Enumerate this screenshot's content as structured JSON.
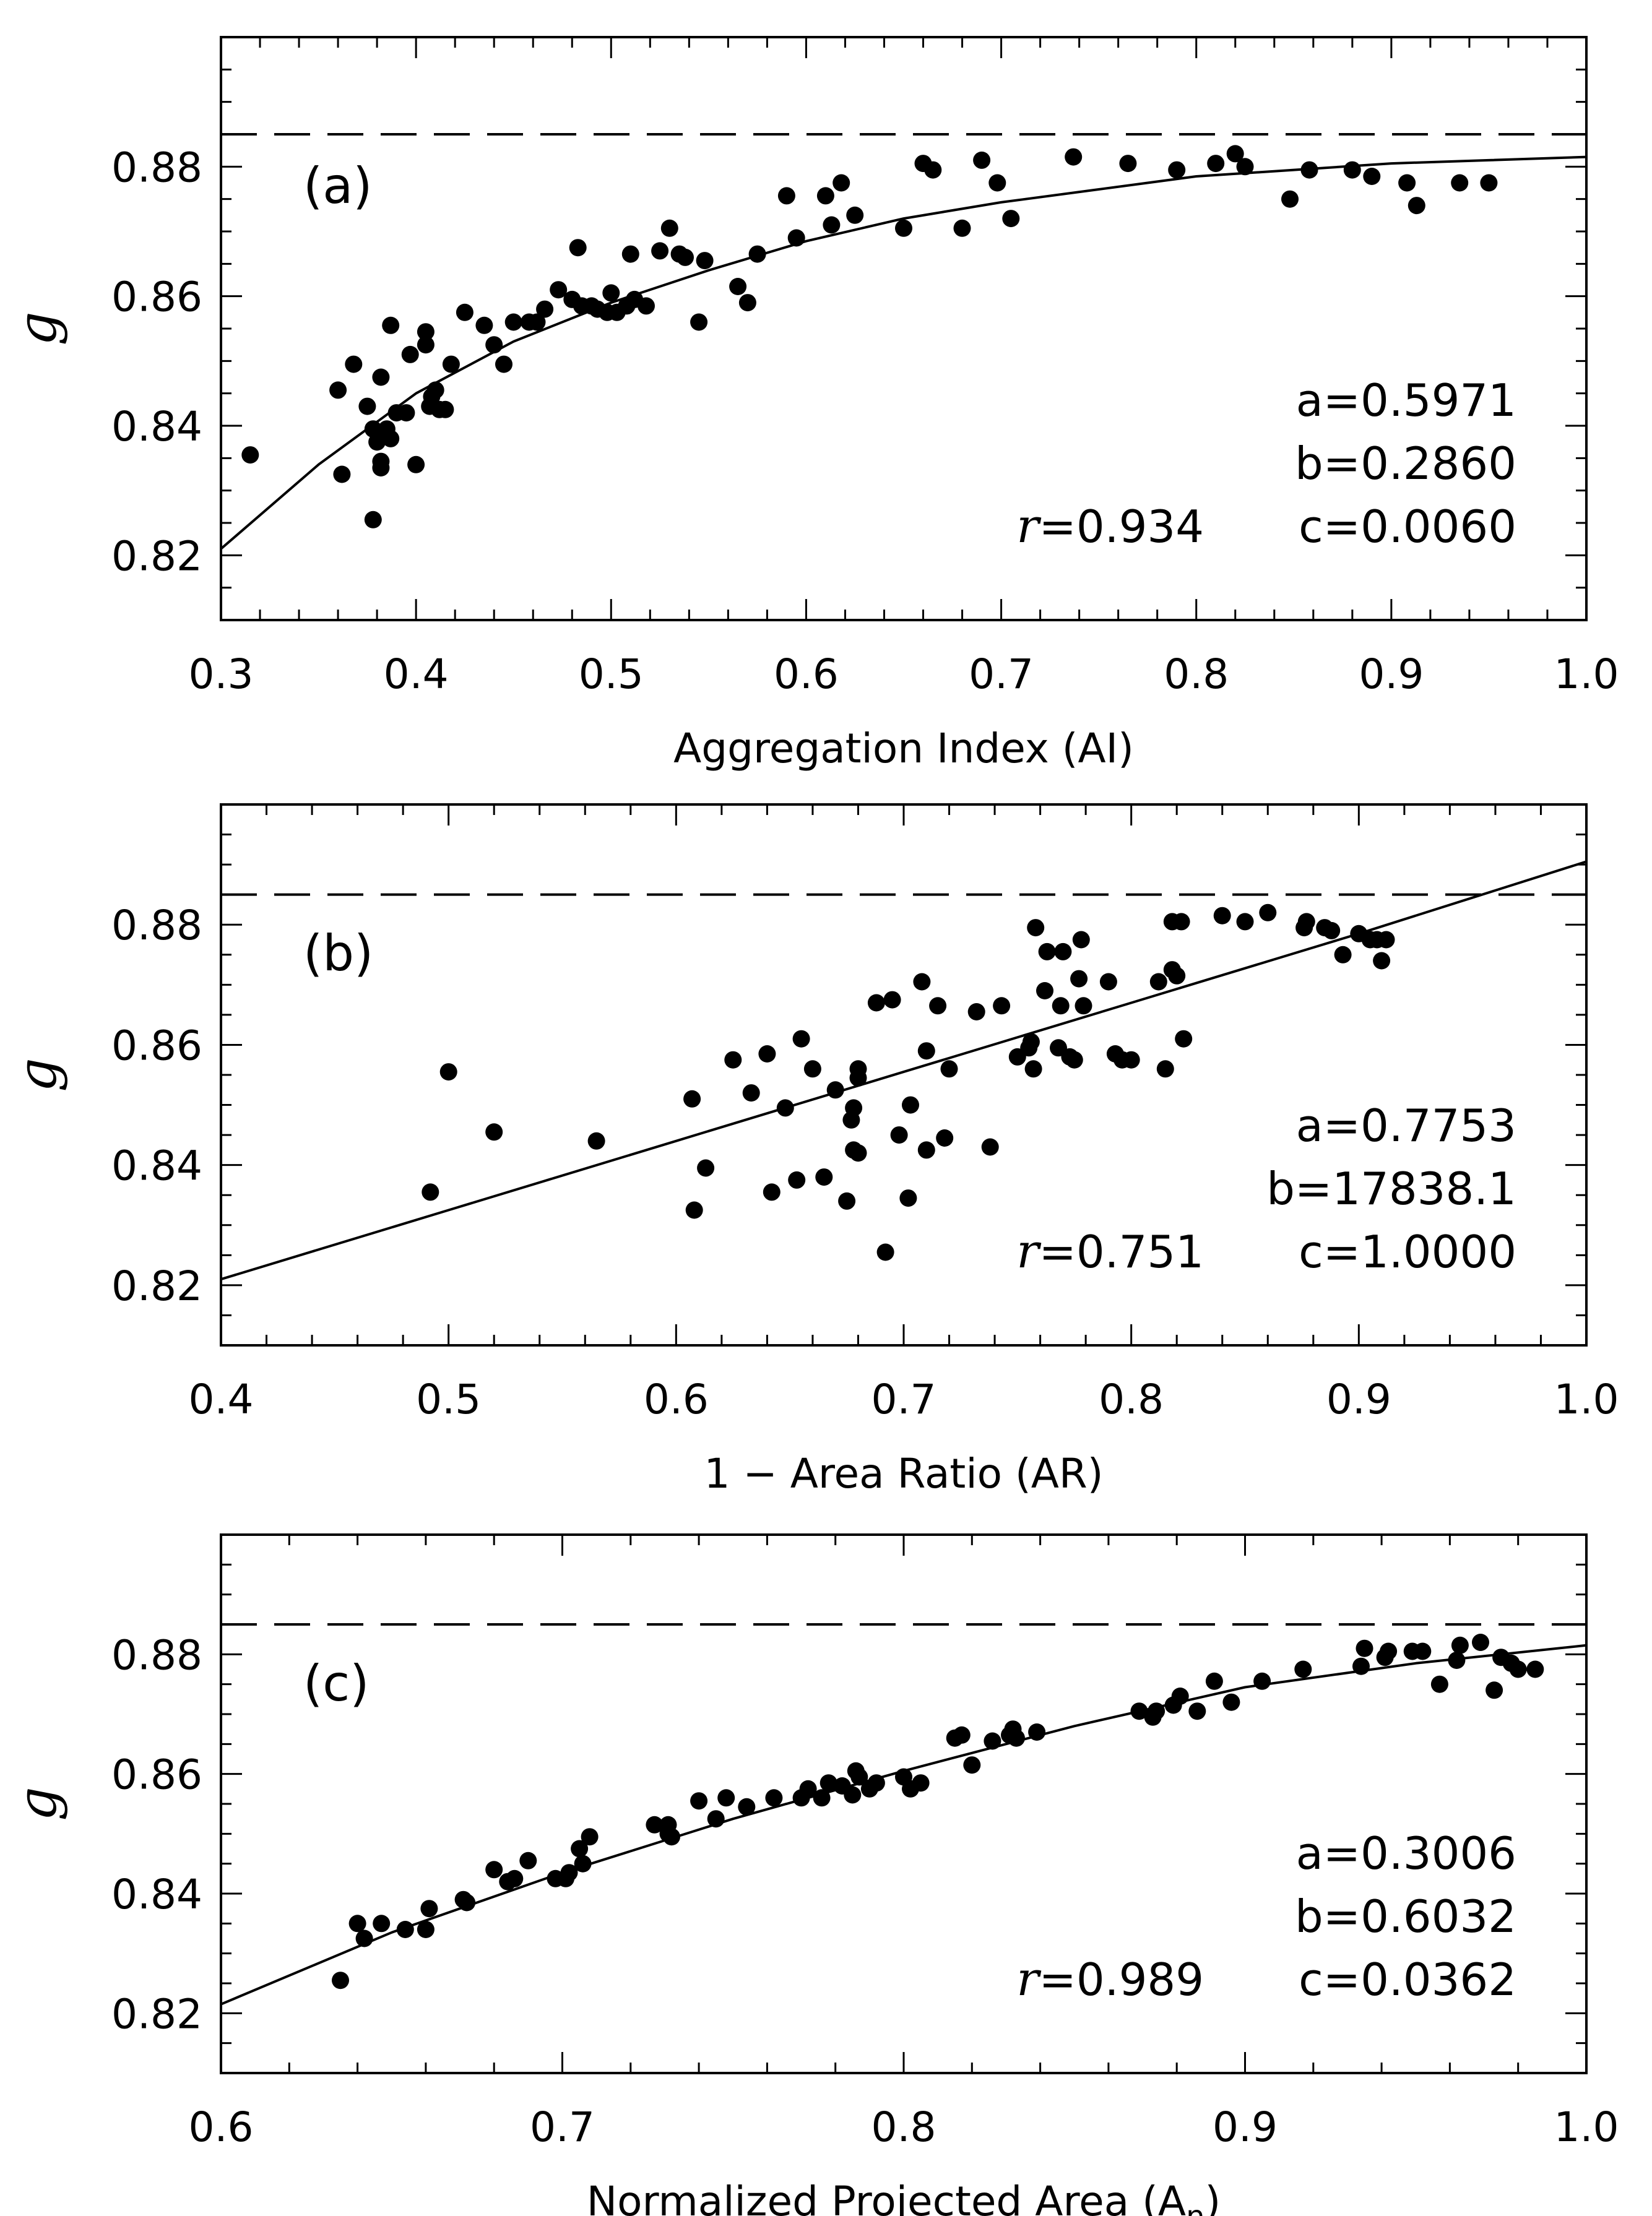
{
  "chart_data": [
    {
      "type": "scatter",
      "panel_label": "(a)",
      "xlabel": "Aggregation Index (AI)",
      "ylabel": "g",
      "xlim": [
        0.3,
        1.0
      ],
      "ylim": [
        0.81,
        0.9
      ],
      "xticks": [
        "0.3",
        "0.4",
        "0.5",
        "0.6",
        "0.7",
        "0.8",
        "0.9",
        "1.0"
      ],
      "yticks": [
        "0.82",
        "0.84",
        "0.86",
        "0.88"
      ],
      "reference_line": 0.885,
      "annotations": {
        "a": "a=0.5971",
        "b": "b=0.2860",
        "c": "c=0.0060",
        "r_symbol": "r",
        "r_value": "=0.934"
      },
      "fit_curve": {
        "x": [
          0.3,
          0.35,
          0.4,
          0.45,
          0.5,
          0.55,
          0.6,
          0.65,
          0.7,
          0.75,
          0.8,
          0.85,
          0.9,
          0.95,
          1.0
        ],
        "y": [
          0.821,
          0.834,
          0.845,
          0.853,
          0.859,
          0.864,
          0.8685,
          0.872,
          0.8745,
          0.8765,
          0.8785,
          0.8795,
          0.8805,
          0.881,
          0.8815
        ]
      },
      "points": [
        [
          0.315,
          0.8355
        ],
        [
          0.36,
          0.8455
        ],
        [
          0.362,
          0.8325
        ],
        [
          0.368,
          0.8495
        ],
        [
          0.375,
          0.843
        ],
        [
          0.378,
          0.8395
        ],
        [
          0.378,
          0.8255
        ],
        [
          0.38,
          0.8375
        ],
        [
          0.382,
          0.8335
        ],
        [
          0.382,
          0.8345
        ],
        [
          0.382,
          0.8475
        ],
        [
          0.385,
          0.8395
        ],
        [
          0.387,
          0.838
        ],
        [
          0.387,
          0.8555
        ],
        [
          0.39,
          0.842
        ],
        [
          0.395,
          0.842
        ],
        [
          0.397,
          0.851
        ],
        [
          0.4,
          0.834
        ],
        [
          0.405,
          0.8525
        ],
        [
          0.405,
          0.8545
        ],
        [
          0.407,
          0.843
        ],
        [
          0.408,
          0.8445
        ],
        [
          0.41,
          0.8455
        ],
        [
          0.412,
          0.8425
        ],
        [
          0.415,
          0.8425
        ],
        [
          0.418,
          0.8495
        ],
        [
          0.425,
          0.8575
        ],
        [
          0.435,
          0.8555
        ],
        [
          0.44,
          0.8525
        ],
        [
          0.445,
          0.8495
        ],
        [
          0.45,
          0.856
        ],
        [
          0.458,
          0.856
        ],
        [
          0.462,
          0.856
        ],
        [
          0.466,
          0.858
        ],
        [
          0.473,
          0.861
        ],
        [
          0.48,
          0.8595
        ],
        [
          0.483,
          0.8675
        ],
        [
          0.485,
          0.8585
        ],
        [
          0.49,
          0.8585
        ],
        [
          0.493,
          0.858
        ],
        [
          0.498,
          0.8575
        ],
        [
          0.5,
          0.8605
        ],
        [
          0.503,
          0.8575
        ],
        [
          0.508,
          0.8585
        ],
        [
          0.51,
          0.8665
        ],
        [
          0.512,
          0.8595
        ],
        [
          0.518,
          0.8585
        ],
        [
          0.525,
          0.867
        ],
        [
          0.53,
          0.8705
        ],
        [
          0.535,
          0.8665
        ],
        [
          0.538,
          0.866
        ],
        [
          0.545,
          0.856
        ],
        [
          0.548,
          0.8655
        ],
        [
          0.565,
          0.8615
        ],
        [
          0.57,
          0.859
        ],
        [
          0.575,
          0.8665
        ],
        [
          0.59,
          0.8755
        ],
        [
          0.595,
          0.869
        ],
        [
          0.61,
          0.8755
        ],
        [
          0.613,
          0.871
        ],
        [
          0.618,
          0.8775
        ],
        [
          0.625,
          0.8725
        ],
        [
          0.65,
          0.8705
        ],
        [
          0.66,
          0.8805
        ],
        [
          0.665,
          0.8795
        ],
        [
          0.68,
          0.8705
        ],
        [
          0.69,
          0.881
        ],
        [
          0.698,
          0.8775
        ],
        [
          0.705,
          0.872
        ],
        [
          0.737,
          0.8815
        ],
        [
          0.765,
          0.8805
        ],
        [
          0.79,
          0.8795
        ],
        [
          0.81,
          0.8805
        ],
        [
          0.82,
          0.882
        ],
        [
          0.825,
          0.88
        ],
        [
          0.848,
          0.875
        ],
        [
          0.858,
          0.8795
        ],
        [
          0.88,
          0.8795
        ],
        [
          0.89,
          0.8785
        ],
        [
          0.908,
          0.8775
        ],
        [
          0.913,
          0.874
        ],
        [
          0.935,
          0.8775
        ],
        [
          0.95,
          0.8775
        ]
      ]
    },
    {
      "type": "scatter",
      "panel_label": "(b)",
      "xlabel": "1 − Area Ratio (AR)",
      "ylabel": "g",
      "xlim": [
        0.4,
        1.0
      ],
      "ylim": [
        0.81,
        0.9
      ],
      "xticks": [
        "0.4",
        "0.5",
        "0.6",
        "0.7",
        "0.8",
        "0.9",
        "1.0"
      ],
      "yticks": [
        "0.82",
        "0.84",
        "0.86",
        "0.88"
      ],
      "reference_line": 0.885,
      "annotations": {
        "a": "a=0.7753",
        "b": "b=17838.1",
        "c": "c=1.0000",
        "r_symbol": "r",
        "r_value": "=0.751"
      },
      "fit_curve": {
        "x": [
          0.4,
          0.5,
          0.6,
          0.7,
          0.8,
          0.9,
          1.0
        ],
        "y": [
          0.821,
          0.8325,
          0.844,
          0.8555,
          0.867,
          0.8785,
          0.8905
        ]
      },
      "points": [
        [
          0.492,
          0.8355
        ],
        [
          0.5,
          0.8555
        ],
        [
          0.52,
          0.8455
        ],
        [
          0.565,
          0.844
        ],
        [
          0.607,
          0.851
        ],
        [
          0.608,
          0.8325
        ],
        [
          0.613,
          0.8395
        ],
        [
          0.625,
          0.8575
        ],
        [
          0.633,
          0.852
        ],
        [
          0.64,
          0.8585
        ],
        [
          0.642,
          0.8355
        ],
        [
          0.648,
          0.8495
        ],
        [
          0.653,
          0.8375
        ],
        [
          0.655,
          0.861
        ],
        [
          0.66,
          0.856
        ],
        [
          0.665,
          0.838
        ],
        [
          0.67,
          0.8525
        ],
        [
          0.675,
          0.834
        ],
        [
          0.677,
          0.8475
        ],
        [
          0.678,
          0.8495
        ],
        [
          0.678,
          0.8425
        ],
        [
          0.68,
          0.8545
        ],
        [
          0.68,
          0.856
        ],
        [
          0.68,
          0.842
        ],
        [
          0.688,
          0.867
        ],
        [
          0.692,
          0.8255
        ],
        [
          0.695,
          0.8675
        ],
        [
          0.698,
          0.845
        ],
        [
          0.702,
          0.8345
        ],
        [
          0.703,
          0.85
        ],
        [
          0.708,
          0.8705
        ],
        [
          0.71,
          0.859
        ],
        [
          0.71,
          0.8425
        ],
        [
          0.715,
          0.8665
        ],
        [
          0.718,
          0.8445
        ],
        [
          0.72,
          0.856
        ],
        [
          0.732,
          0.8655
        ],
        [
          0.738,
          0.843
        ],
        [
          0.743,
          0.8665
        ],
        [
          0.75,
          0.858
        ],
        [
          0.755,
          0.8595
        ],
        [
          0.756,
          0.8605
        ],
        [
          0.757,
          0.856
        ],
        [
          0.758,
          0.8795
        ],
        [
          0.762,
          0.869
        ],
        [
          0.763,
          0.8755
        ],
        [
          0.768,
          0.8595
        ],
        [
          0.769,
          0.8665
        ],
        [
          0.77,
          0.8755
        ],
        [
          0.773,
          0.858
        ],
        [
          0.775,
          0.8575
        ],
        [
          0.777,
          0.871
        ],
        [
          0.778,
          0.8775
        ],
        [
          0.779,
          0.8665
        ],
        [
          0.79,
          0.8705
        ],
        [
          0.793,
          0.8585
        ],
        [
          0.796,
          0.8575
        ],
        [
          0.8,
          0.8575
        ],
        [
          0.812,
          0.8705
        ],
        [
          0.815,
          0.856
        ],
        [
          0.818,
          0.8725
        ],
        [
          0.818,
          0.8805
        ],
        [
          0.82,
          0.8715
        ],
        [
          0.822,
          0.8805
        ],
        [
          0.823,
          0.861
        ],
        [
          0.84,
          0.8815
        ],
        [
          0.85,
          0.8805
        ],
        [
          0.86,
          0.882
        ],
        [
          0.876,
          0.8795
        ],
        [
          0.877,
          0.8805
        ],
        [
          0.885,
          0.8795
        ],
        [
          0.888,
          0.879
        ],
        [
          0.893,
          0.875
        ],
        [
          0.9,
          0.8785
        ],
        [
          0.905,
          0.8775
        ],
        [
          0.908,
          0.8775
        ],
        [
          0.91,
          0.874
        ],
        [
          0.912,
          0.8775
        ]
      ]
    },
    {
      "type": "scatter",
      "panel_label": "(c)",
      "xlabel": "Normalized Projected Area (A",
      "xlabel_sub": "n",
      "xlabel_end": ")",
      "ylabel": "g",
      "xlim": [
        0.6,
        1.0
      ],
      "ylim": [
        0.81,
        0.9
      ],
      "xticks": [
        "0.6",
        "0.7",
        "0.8",
        "0.9",
        "1.0"
      ],
      "yticks": [
        "0.82",
        "0.84",
        "0.86",
        "0.88"
      ],
      "reference_line": 0.885,
      "annotations": {
        "a": "a=0.3006",
        "b": "b=0.6032",
        "c": "c=0.0362",
        "r_symbol": "r",
        "r_value": "=0.989"
      },
      "fit_curve": {
        "x": [
          0.6,
          0.65,
          0.7,
          0.75,
          0.8,
          0.85,
          0.9,
          0.95,
          1.0
        ],
        "y": [
          0.8215,
          0.8335,
          0.8435,
          0.8525,
          0.8605,
          0.868,
          0.8745,
          0.8785,
          0.8815
        ]
      },
      "points": [
        [
          0.635,
          0.8255
        ],
        [
          0.64,
          0.835
        ],
        [
          0.642,
          0.8325
        ],
        [
          0.647,
          0.835
        ],
        [
          0.654,
          0.834
        ],
        [
          0.66,
          0.834
        ],
        [
          0.661,
          0.8375
        ],
        [
          0.671,
          0.839
        ],
        [
          0.672,
          0.8385
        ],
        [
          0.68,
          0.844
        ],
        [
          0.684,
          0.842
        ],
        [
          0.686,
          0.8425
        ],
        [
          0.69,
          0.8455
        ],
        [
          0.698,
          0.8425
        ],
        [
          0.701,
          0.8425
        ],
        [
          0.702,
          0.8435
        ],
        [
          0.705,
          0.8475
        ],
        [
          0.706,
          0.845
        ],
        [
          0.708,
          0.8495
        ],
        [
          0.727,
          0.8515
        ],
        [
          0.731,
          0.8515
        ],
        [
          0.731,
          0.85
        ],
        [
          0.732,
          0.8495
        ],
        [
          0.74,
          0.8555
        ],
        [
          0.745,
          0.8525
        ],
        [
          0.748,
          0.856
        ],
        [
          0.754,
          0.8545
        ],
        [
          0.762,
          0.856
        ],
        [
          0.77,
          0.856
        ],
        [
          0.772,
          0.8575
        ],
        [
          0.776,
          0.856
        ],
        [
          0.778,
          0.8585
        ],
        [
          0.782,
          0.858
        ],
        [
          0.785,
          0.8565
        ],
        [
          0.786,
          0.8605
        ],
        [
          0.787,
          0.8595
        ],
        [
          0.79,
          0.8575
        ],
        [
          0.792,
          0.8585
        ],
        [
          0.8,
          0.8595
        ],
        [
          0.802,
          0.8575
        ],
        [
          0.805,
          0.8585
        ],
        [
          0.815,
          0.866
        ],
        [
          0.817,
          0.8665
        ],
        [
          0.82,
          0.8615
        ],
        [
          0.826,
          0.8655
        ],
        [
          0.831,
          0.8665
        ],
        [
          0.832,
          0.8675
        ],
        [
          0.833,
          0.866
        ],
        [
          0.839,
          0.867
        ],
        [
          0.869,
          0.8705
        ],
        [
          0.873,
          0.8695
        ],
        [
          0.874,
          0.8705
        ],
        [
          0.879,
          0.8715
        ],
        [
          0.881,
          0.873
        ],
        [
          0.886,
          0.8705
        ],
        [
          0.891,
          0.8755
        ],
        [
          0.896,
          0.872
        ],
        [
          0.905,
          0.8755
        ],
        [
          0.917,
          0.8775
        ],
        [
          0.934,
          0.878
        ],
        [
          0.935,
          0.881
        ],
        [
          0.941,
          0.8795
        ],
        [
          0.942,
          0.8805
        ],
        [
          0.949,
          0.8805
        ],
        [
          0.952,
          0.8805
        ],
        [
          0.957,
          0.875
        ],
        [
          0.962,
          0.879
        ],
        [
          0.963,
          0.8815
        ],
        [
          0.969,
          0.882
        ],
        [
          0.973,
          0.874
        ],
        [
          0.975,
          0.8795
        ],
        [
          0.978,
          0.8785
        ],
        [
          0.98,
          0.8775
        ],
        [
          0.985,
          0.8775
        ]
      ]
    }
  ]
}
